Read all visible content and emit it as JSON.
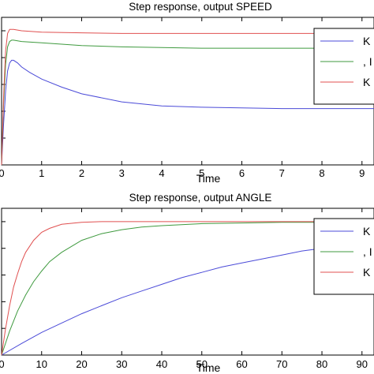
{
  "chart_data": [
    {
      "type": "line",
      "title": "Step response, output SPEED",
      "xlabel": "Time",
      "ylabel": "",
      "xlim": [
        0,
        9.3
      ],
      "ylim": [
        0,
        1.1
      ],
      "xticks": [
        "0",
        "1",
        "2",
        "3",
        "4",
        "5",
        "6",
        "7",
        "8",
        "9"
      ],
      "grid": false,
      "legend_position": "top-right",
      "series": [
        {
          "name": "K",
          "color": "#4b4bd8",
          "x": [
            0,
            0.05,
            0.1,
            0.15,
            0.2,
            0.25,
            0.3,
            0.4,
            0.5,
            0.7,
            1.0,
            1.5,
            2.0,
            3.0,
            4.0,
            5.0,
            6.0,
            7.0,
            8.0,
            9.3
          ],
          "y": [
            0.0,
            0.3,
            0.55,
            0.7,
            0.76,
            0.78,
            0.78,
            0.76,
            0.73,
            0.69,
            0.64,
            0.58,
            0.53,
            0.47,
            0.44,
            0.43,
            0.425,
            0.42,
            0.42,
            0.42
          ]
        },
        {
          "name": ", I",
          "color": "#3f9a3f",
          "x": [
            0,
            0.05,
            0.1,
            0.15,
            0.2,
            0.25,
            0.3,
            0.5,
            1.0,
            2.0,
            3.0,
            4.0,
            5.0,
            6.0,
            7.0,
            8.0,
            9.3
          ],
          "y": [
            0.0,
            0.45,
            0.75,
            0.88,
            0.92,
            0.93,
            0.93,
            0.92,
            0.91,
            0.89,
            0.88,
            0.875,
            0.87,
            0.87,
            0.87,
            0.87,
            0.87
          ]
        },
        {
          "name": "K",
          "color": "#e05050",
          "x": [
            0,
            0.05,
            0.1,
            0.15,
            0.2,
            0.3,
            0.5,
            1.0,
            2.0,
            3.0,
            5.0,
            7.0,
            9.3
          ],
          "y": [
            0.0,
            0.5,
            0.85,
            0.98,
            1.01,
            1.01,
            1.0,
            0.99,
            0.985,
            0.98,
            0.98,
            0.98,
            0.98
          ]
        }
      ]
    },
    {
      "type": "line",
      "title": "Step response, output ANGLE",
      "xlabel": "Time",
      "ylabel": "",
      "xlim": [
        0,
        93
      ],
      "ylim": [
        0,
        1.1
      ],
      "xticks": [
        "0",
        "10",
        "20",
        "30",
        "40",
        "50",
        "60",
        "70",
        "80",
        "90"
      ],
      "grid": false,
      "legend_position": "top-right",
      "series": [
        {
          "name": "K",
          "color": "#4b4bd8",
          "x": [
            0,
            5,
            10,
            15,
            20,
            25,
            30,
            35,
            40,
            45,
            50,
            55,
            60,
            65,
            70,
            75,
            80,
            85,
            90,
            93
          ],
          "y": [
            0.0,
            0.087,
            0.17,
            0.24,
            0.31,
            0.37,
            0.43,
            0.48,
            0.53,
            0.58,
            0.62,
            0.66,
            0.69,
            0.72,
            0.75,
            0.78,
            0.8,
            0.82,
            0.84,
            0.85
          ]
        },
        {
          "name": ", I",
          "color": "#3f9a3f",
          "x": [
            0,
            2,
            4,
            6,
            8,
            10,
            12,
            15,
            20,
            25,
            30,
            35,
            40,
            50,
            60,
            70,
            80,
            93
          ],
          "y": [
            0.0,
            0.18,
            0.33,
            0.45,
            0.55,
            0.63,
            0.7,
            0.77,
            0.86,
            0.91,
            0.94,
            0.96,
            0.97,
            0.985,
            0.99,
            0.995,
            0.995,
            0.995
          ]
        },
        {
          "name": "K",
          "color": "#e05050",
          "x": [
            0,
            1,
            2,
            3,
            4,
            5,
            6,
            8,
            10,
            12,
            15,
            20,
            25,
            30,
            40,
            60,
            93
          ],
          "y": [
            0.0,
            0.2,
            0.37,
            0.51,
            0.61,
            0.7,
            0.77,
            0.86,
            0.92,
            0.95,
            0.98,
            0.995,
            1.0,
            1.0,
            1.0,
            1.0,
            1.0
          ]
        }
      ]
    }
  ]
}
